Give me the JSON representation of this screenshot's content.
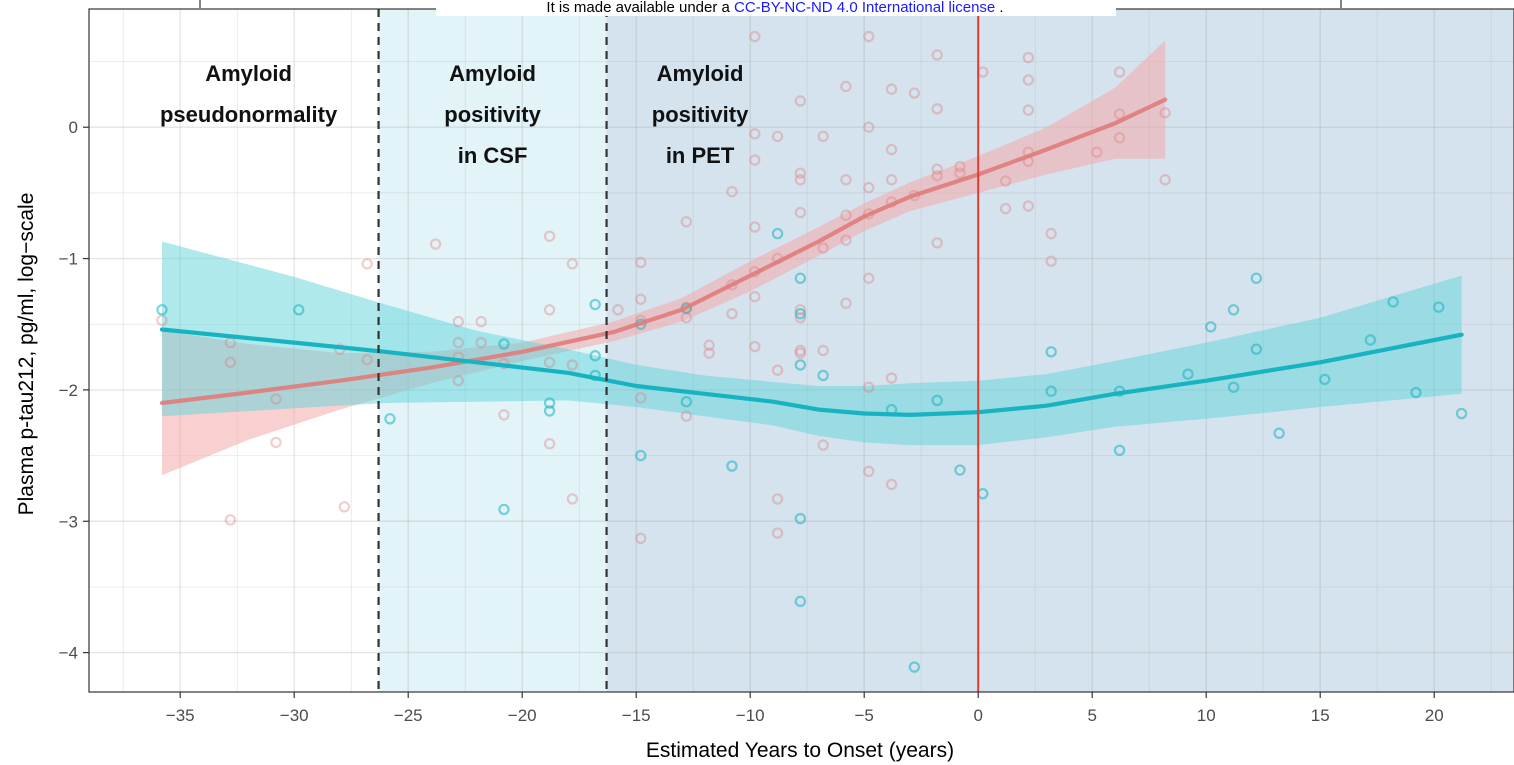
{
  "banner": {
    "text_before": "It is made available under a ",
    "link_text": "CC-BY-NC-ND 4.0 International license",
    "text_after": " ."
  },
  "colors": {
    "series_a": "#e07b7b",
    "series_a_band": "#f4a9a9",
    "series_b": "#17b3c1",
    "series_b_band": "#5fd3d9",
    "zero_line": "#e33b2e",
    "region_csf_fill": "#e3f4f9",
    "region_pet_fill": "#d4e3ee"
  },
  "chart_data": {
    "type": "scatter",
    "xlabel": "Estimated Years to Onset (years)",
    "ylabel": "Plasma p-tau212, pg/ml, log−scale",
    "xlim": [
      -39,
      23.5
    ],
    "ylim": [
      -4.3,
      0.9
    ],
    "x_ticks": [
      -35,
      -30,
      -25,
      -20,
      -15,
      -10,
      -5,
      0,
      5,
      10,
      15,
      20
    ],
    "x_tick_labels": [
      "−35",
      "−30",
      "−25",
      "−20",
      "−15",
      "−10",
      "−5",
      "0",
      "5",
      "10",
      "15",
      "20"
    ],
    "highlight_tick": "0",
    "y_ticks": [
      0,
      -1,
      -2,
      -3,
      -4
    ],
    "y_tick_labels": [
      "0",
      "−1",
      "−2",
      "−3",
      "−4"
    ],
    "grid": true,
    "reference_line_x": 0,
    "thresholds": [
      -26.3,
      -16.3
    ],
    "regions": [
      {
        "lines": [
          "Amyloid",
          "pseudonormality"
        ],
        "from": -39,
        "to": -26.3,
        "label_x": -32
      },
      {
        "lines": [
          "Amyloid",
          "positivity",
          "in CSF"
        ],
        "from": -26.3,
        "to": -16.3,
        "label_x": -21.3
      },
      {
        "lines": [
          "Amyloid",
          "positivity",
          "in PET"
        ],
        "from": -16.3,
        "to": 23.5,
        "label_x": -12.2
      }
    ],
    "series": [
      {
        "key": "a",
        "smooth": [
          [
            -35.8,
            -2.1
          ],
          [
            -32,
            -2.02
          ],
          [
            -28,
            -1.93
          ],
          [
            -24,
            -1.83
          ],
          [
            -20,
            -1.71
          ],
          [
            -16,
            -1.56
          ],
          [
            -13,
            -1.39
          ],
          [
            -10,
            -1.13
          ],
          [
            -7,
            -0.87
          ],
          [
            -5,
            -0.68
          ],
          [
            -3,
            -0.53
          ],
          [
            0,
            -0.36
          ],
          [
            3,
            -0.17
          ],
          [
            6,
            0.03
          ],
          [
            8.2,
            0.21
          ]
        ],
        "band_upper": [
          [
            -35.8,
            -1.55
          ],
          [
            -32,
            -1.65
          ],
          [
            -28,
            -1.72
          ],
          [
            -24,
            -1.71
          ],
          [
            -20,
            -1.64
          ],
          [
            -16,
            -1.48
          ],
          [
            -13,
            -1.3
          ],
          [
            -10,
            -1.02
          ],
          [
            -7,
            -0.76
          ],
          [
            -5,
            -0.58
          ],
          [
            -3,
            -0.42
          ],
          [
            0,
            -0.22
          ],
          [
            3,
            0.0
          ],
          [
            6,
            0.3
          ],
          [
            8.2,
            0.66
          ]
        ],
        "band_lower": [
          [
            -35.8,
            -2.65
          ],
          [
            -32,
            -2.38
          ],
          [
            -28,
            -2.15
          ],
          [
            -24,
            -1.95
          ],
          [
            -20,
            -1.78
          ],
          [
            -16,
            -1.63
          ],
          [
            -13,
            -1.48
          ],
          [
            -10,
            -1.25
          ],
          [
            -7,
            -0.98
          ],
          [
            -5,
            -0.79
          ],
          [
            -3,
            -0.64
          ],
          [
            0,
            -0.5
          ],
          [
            3,
            -0.36
          ],
          [
            6,
            -0.24
          ],
          [
            8.2,
            -0.24
          ]
        ],
        "points": [
          [
            -35.8,
            -1.47
          ],
          [
            -32.8,
            -1.64
          ],
          [
            -32.8,
            -1.79
          ],
          [
            -32.8,
            -2.99
          ],
          [
            -30.8,
            -2.07
          ],
          [
            -30.8,
            -2.4
          ],
          [
            -28,
            -1.69
          ],
          [
            -27.8,
            -2.89
          ],
          [
            -26.8,
            -1.04
          ],
          [
            -26.8,
            -1.77
          ],
          [
            -23.8,
            -0.89
          ],
          [
            -22.8,
            -1.48
          ],
          [
            -22.8,
            -1.64
          ],
          [
            -22.8,
            -1.75
          ],
          [
            -22.8,
            -1.93
          ],
          [
            -21.8,
            -1.48
          ],
          [
            -21.8,
            -1.64
          ],
          [
            -20.8,
            -1.8
          ],
          [
            -20.8,
            -2.19
          ],
          [
            -18.8,
            -0.83
          ],
          [
            -18.8,
            -1.39
          ],
          [
            -18.8,
            -1.79
          ],
          [
            -18.8,
            -2.41
          ],
          [
            -17.8,
            -1.04
          ],
          [
            -17.8,
            -1.81
          ],
          [
            -17.8,
            -2.83
          ],
          [
            -15.8,
            -1.39
          ],
          [
            -14.8,
            -1.03
          ],
          [
            -14.8,
            -1.31
          ],
          [
            -14.8,
            -1.47
          ],
          [
            -14.8,
            -2.06
          ],
          [
            -14.8,
            -3.13
          ],
          [
            -12.8,
            -0.72
          ],
          [
            -12.8,
            -1.37
          ],
          [
            -12.8,
            -1.45
          ],
          [
            -12.8,
            -2.2
          ],
          [
            -11.8,
            -1.66
          ],
          [
            -11.8,
            -1.72
          ],
          [
            -10.8,
            -0.49
          ],
          [
            -10.8,
            -1.2
          ],
          [
            -10.8,
            -1.42
          ],
          [
            -9.8,
            -0.05
          ],
          [
            -9.8,
            -0.25
          ],
          [
            -9.8,
            -0.76
          ],
          [
            -9.8,
            -1.1
          ],
          [
            -9.8,
            -1.29
          ],
          [
            -9.8,
            -1.67
          ],
          [
            -9.8,
            0.69
          ],
          [
            -8.8,
            -0.07
          ],
          [
            -8.8,
            -1.0
          ],
          [
            -8.8,
            -1.85
          ],
          [
            -8.8,
            -2.83
          ],
          [
            -8.8,
            -3.09
          ],
          [
            -7.8,
            0.2
          ],
          [
            -7.8,
            -0.35
          ],
          [
            -7.8,
            -0.4
          ],
          [
            -7.8,
            -0.65
          ],
          [
            -7.8,
            -1.39
          ],
          [
            -7.8,
            -1.45
          ],
          [
            -7.8,
            -1.72
          ],
          [
            -7.8,
            -1.7
          ],
          [
            -6.8,
            -0.07
          ],
          [
            -6.8,
            -0.92
          ],
          [
            -6.8,
            -1.7
          ],
          [
            -6.8,
            -2.42
          ],
          [
            -5.8,
            0.31
          ],
          [
            -5.8,
            -0.4
          ],
          [
            -5.8,
            -0.67
          ],
          [
            -5.8,
            -0.86
          ],
          [
            -5.8,
            -1.34
          ],
          [
            -4.8,
            0.69
          ],
          [
            -4.8,
            0.0
          ],
          [
            -4.8,
            -0.46
          ],
          [
            -4.8,
            -0.66
          ],
          [
            -4.8,
            -1.15
          ],
          [
            -4.8,
            -1.98
          ],
          [
            -4.8,
            -2.62
          ],
          [
            -3.8,
            0.29
          ],
          [
            -3.8,
            -0.17
          ],
          [
            -3.8,
            -0.4
          ],
          [
            -3.8,
            -0.57
          ],
          [
            -3.8,
            -1.91
          ],
          [
            -3.8,
            -2.72
          ],
          [
            -2.8,
            0.26
          ],
          [
            -2.8,
            -0.52
          ],
          [
            -1.8,
            0.55
          ],
          [
            -1.8,
            0.14
          ],
          [
            -1.8,
            -0.32
          ],
          [
            -1.8,
            -0.37
          ],
          [
            -1.8,
            -0.88
          ],
          [
            -0.8,
            -0.3
          ],
          [
            -0.8,
            -0.35
          ],
          [
            0.2,
            0.42
          ],
          [
            1.2,
            -0.41
          ],
          [
            1.2,
            -0.62
          ],
          [
            2.2,
            0.53
          ],
          [
            2.2,
            0.36
          ],
          [
            2.2,
            0.13
          ],
          [
            2.2,
            -0.19
          ],
          [
            2.2,
            -0.26
          ],
          [
            2.2,
            -0.6
          ],
          [
            3.2,
            -0.81
          ],
          [
            3.2,
            -1.02
          ],
          [
            5.2,
            -0.19
          ],
          [
            6.2,
            0.42
          ],
          [
            6.2,
            0.1
          ],
          [
            6.2,
            -0.08
          ],
          [
            8.2,
            0.11
          ],
          [
            8.2,
            -0.4
          ]
        ]
      },
      {
        "key": "b",
        "smooth": [
          [
            -35.8,
            -1.54
          ],
          [
            -30,
            -1.64
          ],
          [
            -26,
            -1.71
          ],
          [
            -22,
            -1.79
          ],
          [
            -18,
            -1.87
          ],
          [
            -15,
            -1.97
          ],
          [
            -12,
            -2.03
          ],
          [
            -9,
            -2.09
          ],
          [
            -7,
            -2.15
          ],
          [
            -5,
            -2.18
          ],
          [
            -3,
            -2.19
          ],
          [
            0,
            -2.17
          ],
          [
            3,
            -2.12
          ],
          [
            6,
            -2.03
          ],
          [
            10,
            -1.93
          ],
          [
            15,
            -1.79
          ],
          [
            21.2,
            -1.58
          ]
        ],
        "band_upper": [
          [
            -35.8,
            -0.87
          ],
          [
            -30,
            -1.14
          ],
          [
            -26,
            -1.35
          ],
          [
            -22,
            -1.55
          ],
          [
            -18,
            -1.69
          ],
          [
            -15,
            -1.81
          ],
          [
            -12,
            -1.89
          ],
          [
            -9,
            -1.94
          ],
          [
            -7,
            -1.97
          ],
          [
            -5,
            -1.97
          ],
          [
            -3,
            -1.95
          ],
          [
            0,
            -1.93
          ],
          [
            3,
            -1.88
          ],
          [
            6,
            -1.78
          ],
          [
            10,
            -1.64
          ],
          [
            15,
            -1.45
          ],
          [
            21.2,
            -1.13
          ]
        ],
        "band_lower": [
          [
            -35.8,
            -2.2
          ],
          [
            -30,
            -2.14
          ],
          [
            -26,
            -2.1
          ],
          [
            -22,
            -2.09
          ],
          [
            -18,
            -2.08
          ],
          [
            -15,
            -2.13
          ],
          [
            -12,
            -2.2
          ],
          [
            -9,
            -2.27
          ],
          [
            -7,
            -2.35
          ],
          [
            -5,
            -2.4
          ],
          [
            -3,
            -2.42
          ],
          [
            0,
            -2.42
          ],
          [
            3,
            -2.36
          ],
          [
            6,
            -2.28
          ],
          [
            10,
            -2.22
          ],
          [
            15,
            -2.13
          ],
          [
            21.2,
            -2.03
          ]
        ],
        "points": [
          [
            -35.8,
            -1.39
          ],
          [
            -29.8,
            -1.39
          ],
          [
            -25.8,
            -2.22
          ],
          [
            -20.8,
            -1.65
          ],
          [
            -20.8,
            -2.91
          ],
          [
            -18.8,
            -2.1
          ],
          [
            -18.8,
            -2.16
          ],
          [
            -16.8,
            -1.35
          ],
          [
            -16.8,
            -1.74
          ],
          [
            -16.8,
            -1.89
          ],
          [
            -14.8,
            -1.5
          ],
          [
            -14.8,
            -2.5
          ],
          [
            -12.8,
            -1.38
          ],
          [
            -12.8,
            -2.09
          ],
          [
            -10.8,
            -2.58
          ],
          [
            -8.8,
            -0.81
          ],
          [
            -7.8,
            -1.15
          ],
          [
            -7.8,
            -1.42
          ],
          [
            -7.8,
            -1.81
          ],
          [
            -7.8,
            -2.98
          ],
          [
            -7.8,
            -3.61
          ],
          [
            -6.8,
            -1.89
          ],
          [
            -3.8,
            -2.15
          ],
          [
            -2.8,
            -4.11
          ],
          [
            -1.8,
            -2.08
          ],
          [
            -0.8,
            -2.61
          ],
          [
            0.2,
            -2.79
          ],
          [
            3.2,
            -1.71
          ],
          [
            3.2,
            -2.01
          ],
          [
            6.2,
            -2.01
          ],
          [
            6.2,
            -2.46
          ],
          [
            9.2,
            -1.88
          ],
          [
            10.2,
            -1.52
          ],
          [
            11.2,
            -1.39
          ],
          [
            11.2,
            -1.98
          ],
          [
            12.2,
            -1.15
          ],
          [
            12.2,
            -1.69
          ],
          [
            13.2,
            -2.33
          ],
          [
            15.2,
            -1.92
          ],
          [
            17.2,
            -1.62
          ],
          [
            18.2,
            -1.33
          ],
          [
            19.2,
            -2.02
          ],
          [
            20.2,
            -1.37
          ],
          [
            21.2,
            -2.18
          ]
        ]
      }
    ]
  }
}
